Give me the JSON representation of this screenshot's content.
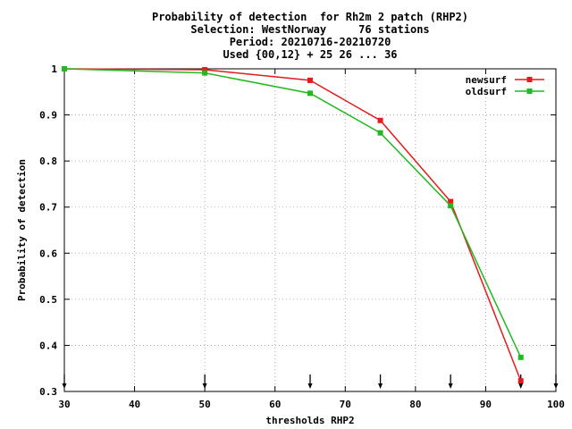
{
  "chart_data": {
    "type": "line",
    "title": [
      "Probability of detection  for Rh2m 2 patch (RHP2)",
      "Selection: WestNorway     76 stations",
      "Period: 20210716-20210720",
      "Used {00,12} + 25 26 ... 36"
    ],
    "xlabel": "thresholds RHP2",
    "ylabel": "Probability of detection",
    "xlim": [
      30,
      100
    ],
    "ylim": [
      0.3,
      1.0
    ],
    "xticks": [
      30,
      40,
      50,
      60,
      70,
      80,
      90,
      100
    ],
    "yticks": [
      0.3,
      0.4,
      0.5,
      0.6,
      0.7,
      0.8,
      0.9,
      1.0
    ],
    "ytick_labels": [
      "0.3",
      "0.4",
      "0.5",
      "0.6",
      "0.7",
      "0.8",
      "0.9",
      "1"
    ],
    "grid": true,
    "legend_position": "top-right",
    "threshold_markers": [
      30,
      50,
      65,
      75,
      85,
      95,
      100
    ],
    "series": [
      {
        "name": "newsurf",
        "color": "#e41a1c",
        "x": [
          30,
          50,
          65,
          75,
          85,
          95
        ],
        "y": [
          1.0,
          0.998,
          0.975,
          0.888,
          0.712,
          0.323
        ]
      },
      {
        "name": "oldsurf",
        "color": "#22b822",
        "x": [
          30,
          50,
          65,
          75,
          85,
          95
        ],
        "y": [
          1.0,
          0.991,
          0.947,
          0.861,
          0.703,
          0.374
        ]
      }
    ]
  }
}
